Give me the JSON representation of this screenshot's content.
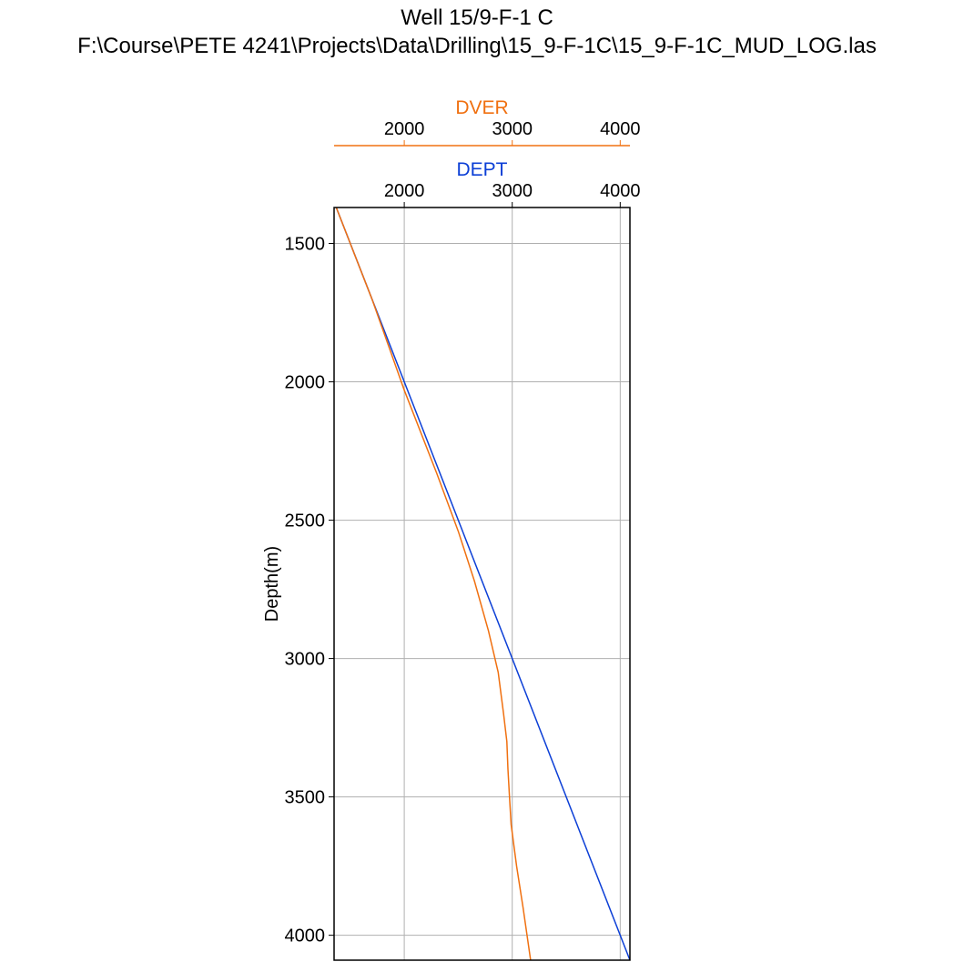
{
  "chart_data": {
    "type": "line",
    "title": "Well 15/9-F-1 C",
    "subtitle": "F:\\Course\\PETE 4241\\Projects\\Data\\Drilling\\15_9-F-1C\\15_9-F-1C_MUD_LOG.las",
    "ylabel": "Depth(m)",
    "ylim": [
      4090,
      1370
    ],
    "y_inverted": true,
    "y_ticks": [
      1500,
      2000,
      2500,
      3000,
      3500,
      4000
    ],
    "grid": true,
    "series": [
      {
        "name": "DEPT",
        "color": "#0c3fd6",
        "xlim": [
          1350,
          4090
        ],
        "x_ticks": [
          2000,
          3000,
          4000
        ],
        "x": [
          1370,
          4090
        ],
        "y": [
          1370,
          4090
        ]
      },
      {
        "name": "DVER",
        "color": "#f07010",
        "xlim": [
          1350,
          4090
        ],
        "x_ticks": [
          2000,
          3000,
          4000
        ],
        "x": [
          1370,
          1700,
          2000,
          2300,
          2500,
          2650,
          2780,
          2870,
          2920,
          2950,
          2960,
          2975,
          2990,
          3040,
          3100,
          3170
        ],
        "y": [
          1370,
          1700,
          2030,
          2330,
          2540,
          2720,
          2900,
          3050,
          3200,
          3300,
          3400,
          3500,
          3600,
          3750,
          3900,
          4090
        ]
      }
    ]
  }
}
